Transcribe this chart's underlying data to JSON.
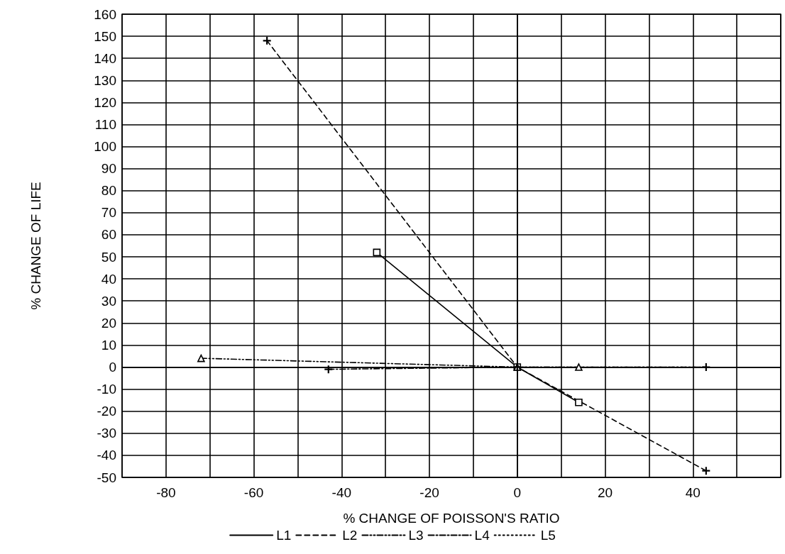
{
  "chart_data": {
    "type": "line",
    "xlabel": "% CHANGE OF POISSON'S RATIO",
    "ylabel": "% CHANGE OF LIFE",
    "xlim": [
      -90,
      60
    ],
    "xticks": [
      {
        "value": -90,
        "label": null
      },
      -80,
      {
        "value": -70,
        "label": null
      },
      -60,
      {
        "value": -50,
        "label": null
      },
      -40,
      {
        "value": -30,
        "label": null
      },
      -20,
      {
        "value": -10,
        "label": null
      },
      0,
      {
        "value": 10,
        "label": null
      },
      20,
      {
        "value": 30,
        "label": null
      },
      40,
      {
        "value": 50,
        "label": null
      },
      {
        "value": 60,
        "label": null
      }
    ],
    "ylim": [
      -50,
      160
    ],
    "yticks": [
      -50,
      -40,
      -30,
      -20,
      -10,
      0,
      10,
      20,
      30,
      40,
      50,
      60,
      70,
      80,
      90,
      100,
      110,
      120,
      130,
      140,
      150,
      160
    ],
    "grid": true,
    "legend": "bottom",
    "series": [
      {
        "name": "L1",
        "color": "#000000",
        "line_style": "solid",
        "marker": "square",
        "x": [
          -32,
          0,
          14
        ],
        "values": [
          52,
          0,
          -16
        ]
      },
      {
        "name": "L2",
        "color": "#000000",
        "line_style": "dashed",
        "marker": "cross",
        "x": [
          -57,
          0,
          43
        ],
        "values": [
          148,
          0,
          -47
        ]
      },
      {
        "name": "L3",
        "color": "#000000",
        "line_style": "dashdotdot",
        "marker": "triangle",
        "x": [
          -72,
          0,
          14
        ],
        "values": [
          4,
          0,
          0
        ]
      },
      {
        "name": "L4",
        "color": "#000000",
        "line_style": "dashdot",
        "marker": "cross",
        "x": [
          -43,
          0,
          43
        ],
        "values": [
          -1,
          0,
          0
        ]
      },
      {
        "name": "L5",
        "color": "#000000",
        "line_style": "dotted",
        "marker": "none",
        "x": [
          14,
          43
        ],
        "values": [
          0,
          0
        ]
      }
    ]
  }
}
